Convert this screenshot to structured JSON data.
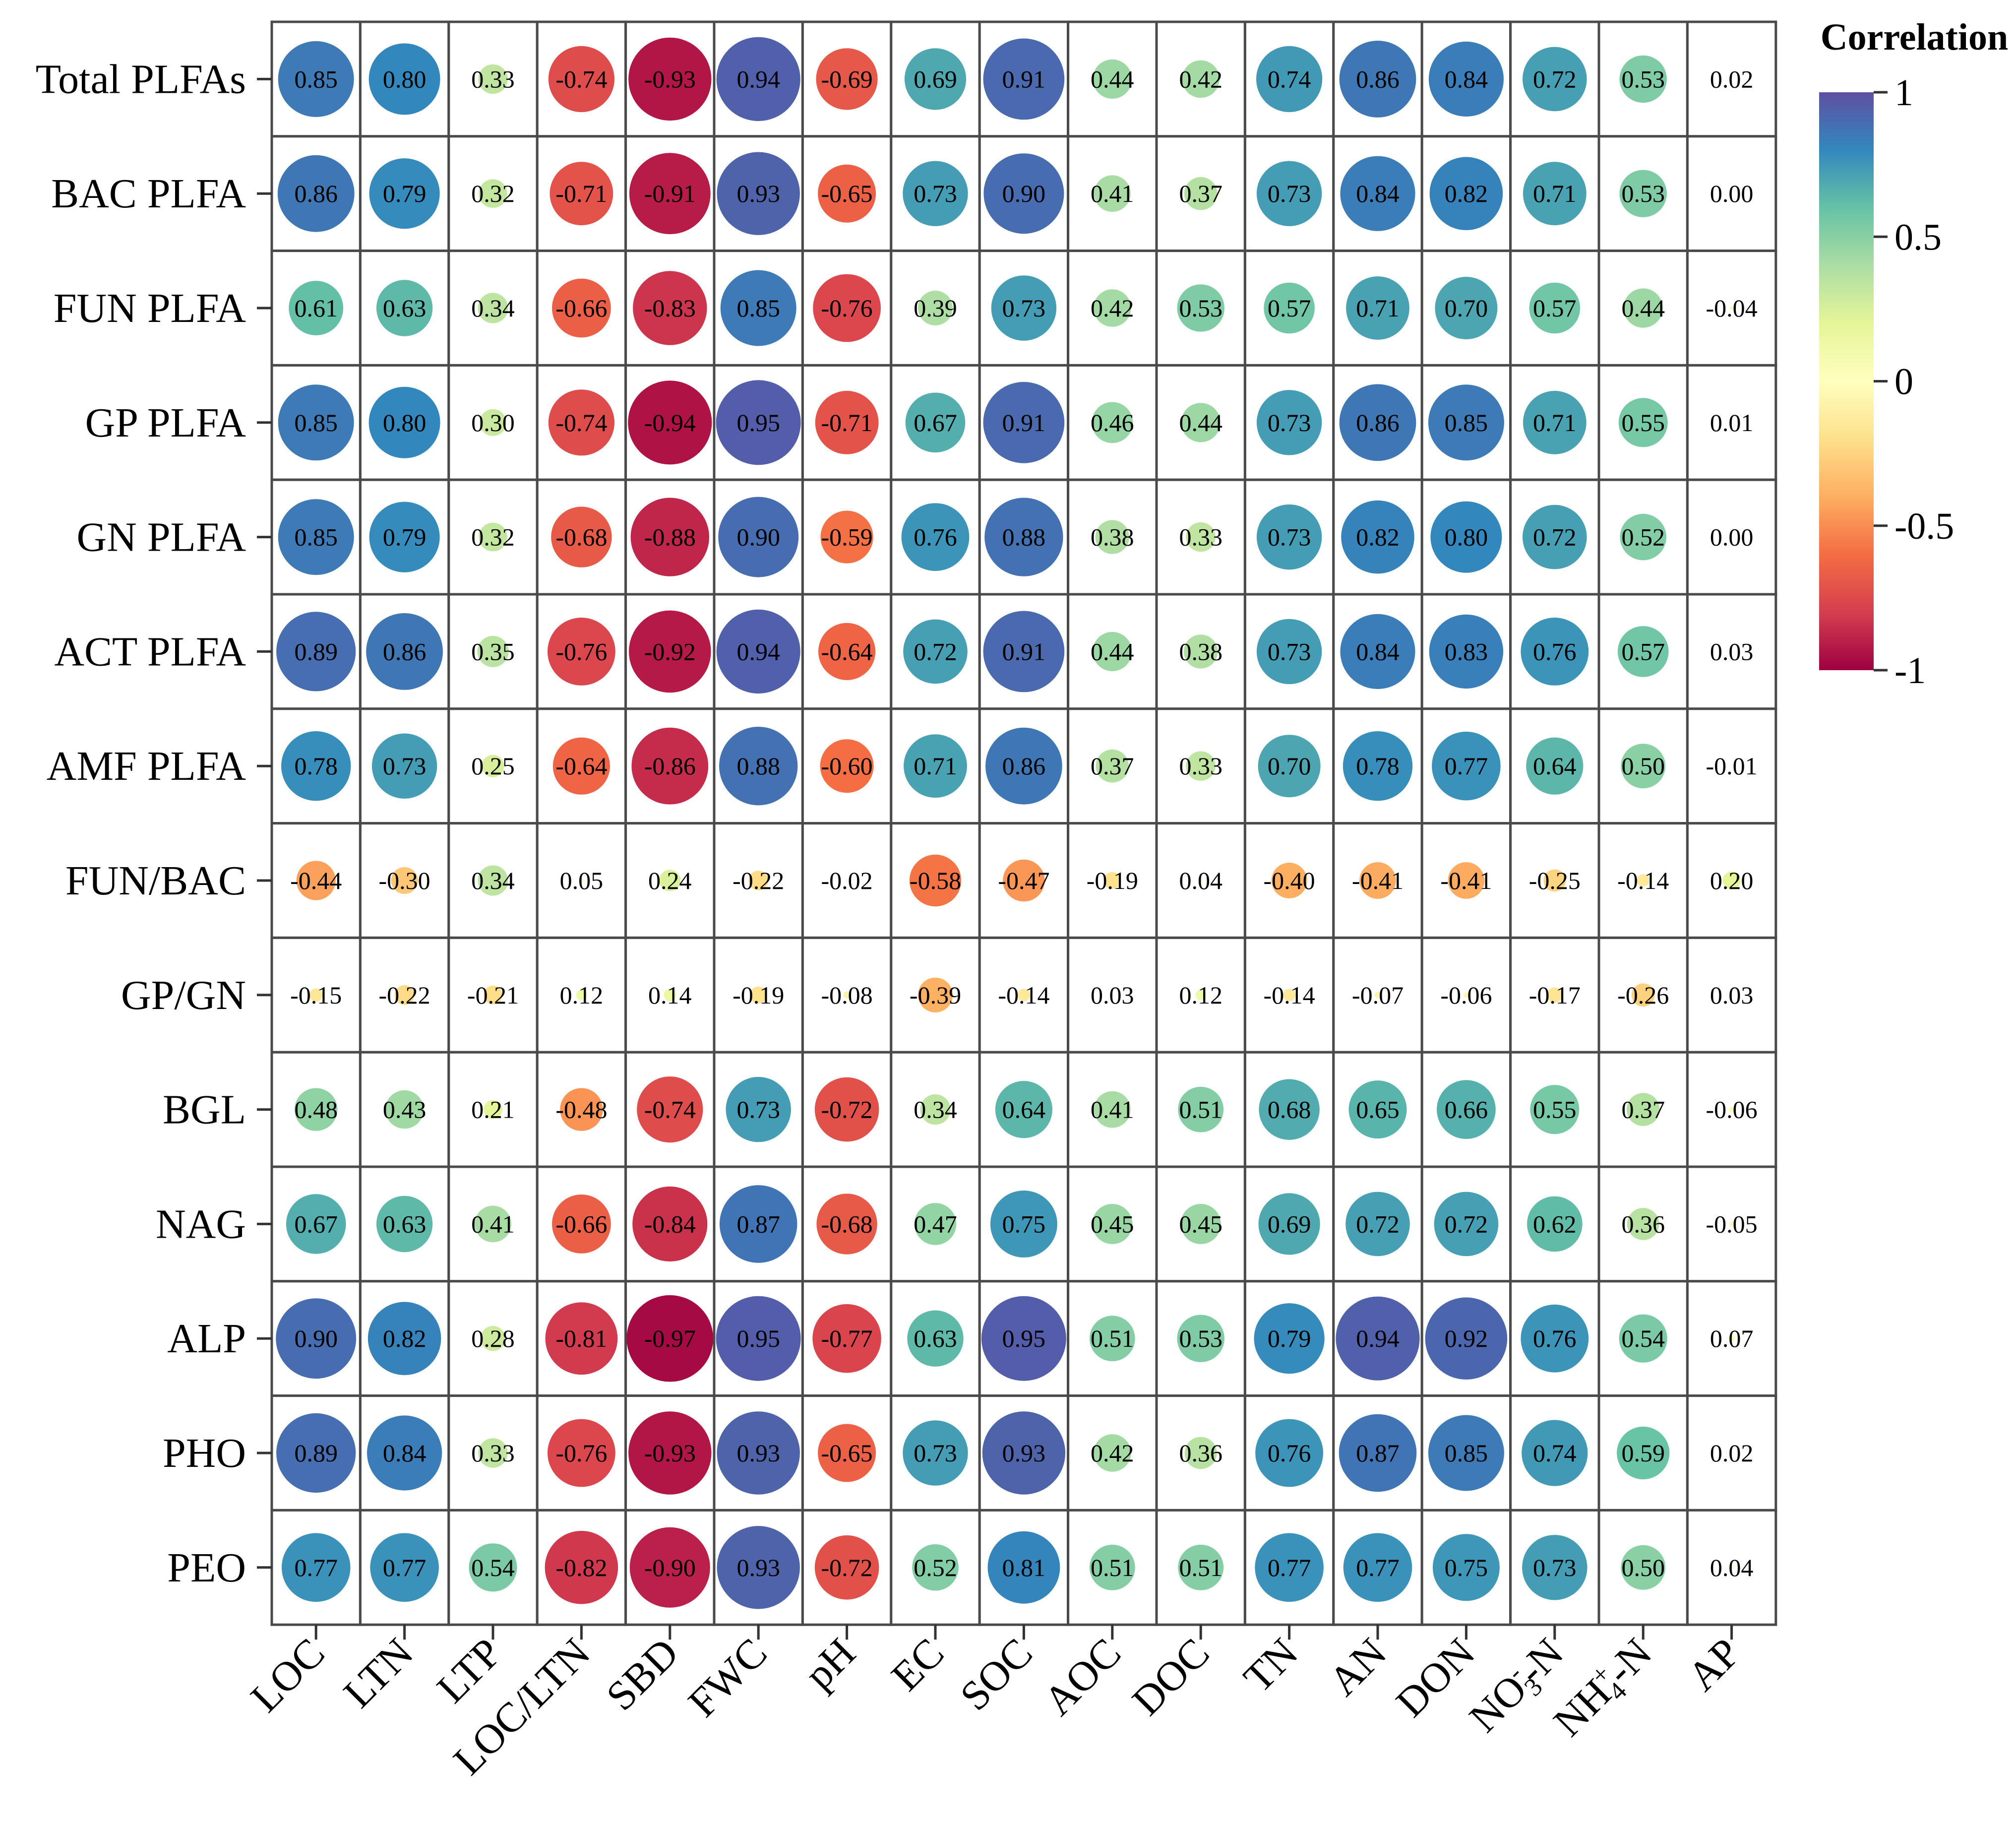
{
  "chart_data": {
    "type": "heatmap",
    "subtype": "correlation-bubble-matrix",
    "title": "",
    "legend_title": "Correlation",
    "color_scale": {
      "name": "Spectral",
      "range": [
        -1,
        1
      ],
      "ticks": [
        "1",
        "0.5",
        "0",
        "-0.5",
        "-1"
      ],
      "tick_values": [
        1,
        0.5,
        0,
        -0.5,
        -1
      ],
      "stops": [
        {
          "v": -1.0,
          "c": "#9e0142"
        },
        {
          "v": -0.8,
          "c": "#d53e4f"
        },
        {
          "v": -0.6,
          "c": "#f46d43"
        },
        {
          "v": -0.4,
          "c": "#fdae61"
        },
        {
          "v": -0.2,
          "c": "#fee08b"
        },
        {
          "v": 0.0,
          "c": "#ffffbf"
        },
        {
          "v": 0.2,
          "c": "#e6f598"
        },
        {
          "v": 0.4,
          "c": "#abdda4"
        },
        {
          "v": 0.6,
          "c": "#66c2a5"
        },
        {
          "v": 0.8,
          "c": "#3288bd"
        },
        {
          "v": 1.0,
          "c": "#5e4fa2"
        }
      ]
    },
    "rows": [
      "Total PLFAs",
      "BAC PLFA",
      "FUN PLFA",
      "GP PLFA",
      "GN PLFA",
      "ACT PLFA",
      "AMF PLFA",
      "FUN/BAC",
      "GP/GN",
      "BGL",
      "NAG",
      "ALP",
      "PHO",
      "PEO"
    ],
    "columns": [
      {
        "base": "LOC",
        "sup": "",
        "sub": "",
        "suffix": ""
      },
      {
        "base": "LTN",
        "sup": "",
        "sub": "",
        "suffix": ""
      },
      {
        "base": "LTP",
        "sup": "",
        "sub": "",
        "suffix": ""
      },
      {
        "base": "LOC/LTN",
        "sup": "",
        "sub": "",
        "suffix": ""
      },
      {
        "base": "SBD",
        "sup": "",
        "sub": "",
        "suffix": ""
      },
      {
        "base": "FWC",
        "sup": "",
        "sub": "",
        "suffix": ""
      },
      {
        "base": "pH",
        "sup": "",
        "sub": "",
        "suffix": ""
      },
      {
        "base": "EC",
        "sup": "",
        "sub": "",
        "suffix": ""
      },
      {
        "base": "SOC",
        "sup": "",
        "sub": "",
        "suffix": ""
      },
      {
        "base": "AOC",
        "sup": "",
        "sub": "",
        "suffix": ""
      },
      {
        "base": "DOC",
        "sup": "",
        "sub": "",
        "suffix": ""
      },
      {
        "base": "TN",
        "sup": "",
        "sub": "",
        "suffix": ""
      },
      {
        "base": "AN",
        "sup": "",
        "sub": "",
        "suffix": ""
      },
      {
        "base": "DON",
        "sup": "",
        "sub": "",
        "suffix": ""
      },
      {
        "base": "NO",
        "sup": "-",
        "sub": "3",
        "suffix": "-N"
      },
      {
        "base": "NH",
        "sup": "+",
        "sub": "4",
        "suffix": "-N"
      },
      {
        "base": "AP",
        "sup": "",
        "sub": "",
        "suffix": ""
      }
    ],
    "values": [
      [
        "0.85",
        "0.80",
        "0.33",
        "-0.74",
        "-0.93",
        "0.94",
        "-0.69",
        "0.69",
        "0.91",
        "0.44",
        "0.42",
        "0.74",
        "0.86",
        "0.84",
        "0.72",
        "0.53",
        "0.02"
      ],
      [
        "0.86",
        "0.79",
        "0.32",
        "-0.71",
        "-0.91",
        "0.93",
        "-0.65",
        "0.73",
        "0.90",
        "0.41",
        "0.37",
        "0.73",
        "0.84",
        "0.82",
        "0.71",
        "0.53",
        "0.00"
      ],
      [
        "0.61",
        "0.63",
        "0.34",
        "-0.66",
        "-0.83",
        "0.85",
        "-0.76",
        "0.39",
        "0.73",
        "0.42",
        "0.53",
        "0.57",
        "0.71",
        "0.70",
        "0.57",
        "0.44",
        "-0.04"
      ],
      [
        "0.85",
        "0.80",
        "0.30",
        "-0.74",
        "-0.94",
        "0.95",
        "-0.71",
        "0.67",
        "0.91",
        "0.46",
        "0.44",
        "0.73",
        "0.86",
        "0.85",
        "0.71",
        "0.55",
        "0.01"
      ],
      [
        "0.85",
        "0.79",
        "0.32",
        "-0.68",
        "-0.88",
        "0.90",
        "-0.59",
        "0.76",
        "0.88",
        "0.38",
        "0.33",
        "0.73",
        "0.82",
        "0.80",
        "0.72",
        "0.52",
        "0.00"
      ],
      [
        "0.89",
        "0.86",
        "0.35",
        "-0.76",
        "-0.92",
        "0.94",
        "-0.64",
        "0.72",
        "0.91",
        "0.44",
        "0.38",
        "0.73",
        "0.84",
        "0.83",
        "0.76",
        "0.57",
        "0.03"
      ],
      [
        "0.78",
        "0.73",
        "0.25",
        "-0.64",
        "-0.86",
        "0.88",
        "-0.60",
        "0.71",
        "0.86",
        "0.37",
        "0.33",
        "0.70",
        "0.78",
        "0.77",
        "0.64",
        "0.50",
        "-0.01"
      ],
      [
        "-0.44",
        "-0.30",
        "0.34",
        "0.05",
        "0.24",
        "-0.22",
        "-0.02",
        "-0.58",
        "-0.47",
        "-0.19",
        "0.04",
        "-0.40",
        "-0.41",
        "-0.41",
        "-0.25",
        "-0.14",
        "0.20"
      ],
      [
        "-0.15",
        "-0.22",
        "-0.21",
        "0.12",
        "0.14",
        "-0.19",
        "-0.08",
        "-0.39",
        "-0.14",
        "0.03",
        "0.12",
        "-0.14",
        "-0.07",
        "-0.06",
        "-0.17",
        "-0.26",
        "0.03"
      ],
      [
        "0.48",
        "0.43",
        "0.21",
        "-0.48",
        "-0.74",
        "0.73",
        "-0.72",
        "0.34",
        "0.64",
        "0.41",
        "0.51",
        "0.68",
        "0.65",
        "0.66",
        "0.55",
        "0.37",
        "-0.06"
      ],
      [
        "0.67",
        "0.63",
        "0.41",
        "-0.66",
        "-0.84",
        "0.87",
        "-0.68",
        "0.47",
        "0.75",
        "0.45",
        "0.45",
        "0.69",
        "0.72",
        "0.72",
        "0.62",
        "0.36",
        "-0.05"
      ],
      [
        "0.90",
        "0.82",
        "0.28",
        "-0.81",
        "-0.97",
        "0.95",
        "-0.77",
        "0.63",
        "0.95",
        "0.51",
        "0.53",
        "0.79",
        "0.94",
        "0.92",
        "0.76",
        "0.54",
        "0.07"
      ],
      [
        "0.89",
        "0.84",
        "0.33",
        "-0.76",
        "-0.93",
        "0.93",
        "-0.65",
        "0.73",
        "0.93",
        "0.42",
        "0.36",
        "0.76",
        "0.87",
        "0.85",
        "0.74",
        "0.59",
        "0.02"
      ],
      [
        "0.77",
        "0.77",
        "0.54",
        "-0.82",
        "-0.90",
        "0.93",
        "-0.72",
        "0.52",
        "0.81",
        "0.51",
        "0.51",
        "0.77",
        "0.77",
        "0.75",
        "0.73",
        "0.50",
        "0.04"
      ]
    ]
  }
}
